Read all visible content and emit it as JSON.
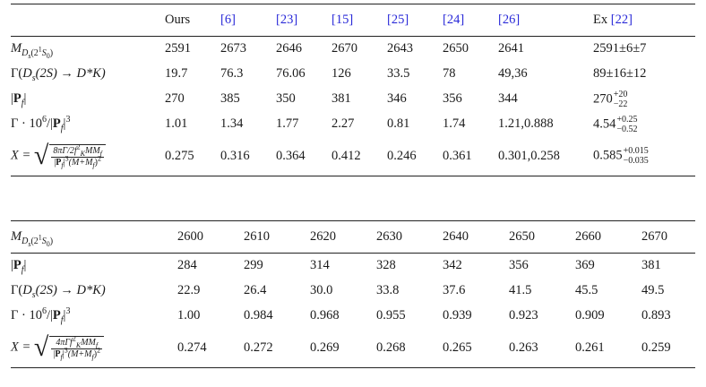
{
  "table1": {
    "headers": [
      "Ours",
      "[6]",
      "[23]",
      "[15]",
      "[25]",
      "[24]",
      "[26]",
      "Ex [22]"
    ],
    "rows": [
      {
        "label": "M_{Ds(2^1S_0)}",
        "values": [
          "2591",
          "2673",
          "2646",
          "2670",
          "2643",
          "2650",
          "2641",
          "2591±6±7"
        ]
      },
      {
        "label": "Γ(Ds(2S) → D*K)",
        "values": [
          "19.7",
          "76.3",
          "76.06",
          "126",
          "33.5",
          "78",
          "49,36",
          "89±16±12"
        ]
      },
      {
        "label": "|P_f|",
        "values": [
          "270",
          "385",
          "350",
          "381",
          "346",
          "356",
          "344",
          "270"
        ],
        "last_sup": "+20",
        "last_sub": "−22"
      },
      {
        "label": "Γ · 10^6/|P_f|^3",
        "values": [
          "1.01",
          "1.34",
          "1.77",
          "2.27",
          "0.81",
          "1.74",
          "1.21,0.888",
          "4.54"
        ],
        "last_sup": "+0.25",
        "last_sub": "−0.52"
      },
      {
        "label": "X = sqrt(8πΓ/2f_K^2 MM_f / |P_f|^3(M+M_f)^2)",
        "values": [
          "0.275",
          "0.316",
          "0.364",
          "0.412",
          "0.246",
          "0.361",
          "0.301,0.258",
          "0.585"
        ],
        "last_sup": "+0.015",
        "last_sub": "−0.035"
      }
    ]
  },
  "table2": {
    "headers": [
      "2600",
      "2610",
      "2620",
      "2630",
      "2640",
      "2650",
      "2660",
      "2670"
    ],
    "rows": [
      {
        "label": "|P_f|",
        "values": [
          "284",
          "299",
          "314",
          "328",
          "342",
          "356",
          "369",
          "381"
        ]
      },
      {
        "label": "Γ(Ds(2S) → D*K)",
        "values": [
          "22.9",
          "26.4",
          "30.0",
          "33.8",
          "37.6",
          "41.5",
          "45.5",
          "49.5"
        ]
      },
      {
        "label": "Γ · 10^6/|P_f|^3",
        "values": [
          "1.00",
          "0.984",
          "0.968",
          "0.955",
          "0.939",
          "0.923",
          "0.909",
          "0.893"
        ]
      },
      {
        "label": "X = sqrt(4πΓf_K^2 MM_f / |P_f|^3(M+M_f)^2)",
        "values": [
          "0.274",
          "0.272",
          "0.269",
          "0.268",
          "0.265",
          "0.263",
          "0.261",
          "0.259"
        ]
      }
    ]
  },
  "math": {
    "M": "M",
    "Ds": "D",
    "s": "s",
    "state": "(2",
    "state_sup": "1",
    "state_end": "S",
    "state_sub": "0",
    "state_close": ")",
    "gamma": "Γ(",
    "gamma_s": "s",
    "gamma_rest": "(2S) → D*K)",
    "Pf_open": "|",
    "P": "P",
    "f": "f",
    "Pf_close": "|",
    "pow_prefix": "Γ · 10",
    "six": "6",
    "slash": "/|",
    "three": "3",
    "X_eq": "X =",
    "frac1_num": "8πΓ/2f",
    "frac2_num": "4πΓf",
    "K": "K",
    "two": "2",
    "MMf": "MM",
    "den_open": "|",
    "den_mid": "|",
    "den_M": "(M+M",
    "den_close": ")",
    "radical": "√"
  }
}
